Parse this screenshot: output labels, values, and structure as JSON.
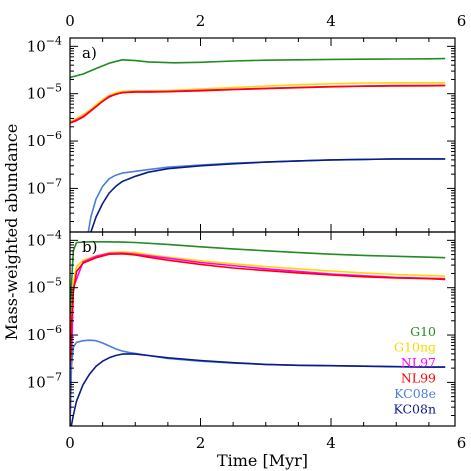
{
  "chart_data": [
    {
      "type": "line",
      "panel_label": "a)",
      "xlabel": "Time [Myr]",
      "ylabel": "Mass-weighted abundance",
      "xlim": [
        0,
        5.9
      ],
      "ylim": [
        1.2e-08,
        0.00015
      ],
      "yscale": "log",
      "x_ticks": [
        0,
        2,
        4,
        6
      ],
      "x_tick_labels": [
        "0",
        "2",
        "4",
        "6"
      ],
      "y_ticks": [
        1e-07,
        1e-06,
        1e-05,
        0.0001
      ],
      "y_tick_labels": [
        {
          "base": "10",
          "exp": "−7"
        },
        {
          "base": "10",
          "exp": "−6"
        },
        {
          "base": "10",
          "exp": "−5"
        },
        {
          "base": "10",
          "exp": "−4"
        }
      ],
      "series": [
        {
          "name": "G10",
          "color": "#228b22",
          "x": [
            0,
            0.2,
            0.4,
            0.6,
            0.8,
            1.0,
            1.2,
            1.6,
            2.0,
            2.5,
            3.0,
            3.5,
            4.0,
            4.5,
            5.0,
            5.5,
            5.75
          ],
          "y": [
            2.2e-05,
            2.6e-05,
            3.4e-05,
            4.4e-05,
            5.2e-05,
            5e-05,
            4.7e-05,
            4.5e-05,
            4.6e-05,
            4.9e-05,
            5.1e-05,
            5.2e-05,
            5.3e-05,
            5.35e-05,
            5.4e-05,
            5.45e-05,
            5.5e-05
          ]
        },
        {
          "name": "G10ng",
          "color": "#ffd700",
          "x": [
            0,
            0.1,
            0.2,
            0.3,
            0.4,
            0.5,
            0.6,
            0.7,
            0.8,
            1.0,
            1.2,
            1.5,
            2.0,
            2.5,
            3.0,
            3.5,
            4.0,
            4.5,
            5.0,
            5.5,
            5.75
          ],
          "y": [
            2.6e-06,
            3e-06,
            3.6e-06,
            4.5e-06,
            5.8e-06,
            7.5e-06,
            9.2e-06,
            1.05e-05,
            1.12e-05,
            1.15e-05,
            1.15e-05,
            1.17e-05,
            1.25e-05,
            1.35e-05,
            1.45e-05,
            1.55e-05,
            1.62e-05,
            1.68e-05,
            1.7e-05,
            1.7e-05,
            1.7e-05
          ]
        },
        {
          "name": "NL97",
          "color": "#ff00ff",
          "x": [
            0,
            0.2,
            0.4,
            0.6,
            0.8,
            1.0,
            1.5,
            2.0,
            3.0,
            4.0,
            5.0,
            5.75
          ],
          "y": [
            2.4e-06,
            3.3e-06,
            5.4e-06,
            8.8e-06,
            1.06e-05,
            1.1e-05,
            1.12e-05,
            1.18e-05,
            1.3e-05,
            1.42e-05,
            1.48e-05,
            1.5e-05
          ]
        },
        {
          "name": "NL99",
          "color": "#ff0000",
          "x": [
            0,
            0.1,
            0.2,
            0.3,
            0.4,
            0.5,
            0.6,
            0.7,
            0.8,
            1.0,
            1.2,
            1.5,
            2.0,
            2.5,
            3.0,
            3.5,
            4.0,
            4.5,
            5.0,
            5.5,
            5.75
          ],
          "y": [
            2.4e-06,
            2.7e-06,
            3.2e-06,
            4.1e-06,
            5.3e-06,
            6.9e-06,
            8.5e-06,
            9.8e-06,
            1.05e-05,
            1.08e-05,
            1.08e-05,
            1.1e-05,
            1.15e-05,
            1.22e-05,
            1.28e-05,
            1.34e-05,
            1.4e-05,
            1.44e-05,
            1.46e-05,
            1.47e-05,
            1.48e-05
          ]
        },
        {
          "name": "KC08e",
          "color": "#4a7ed8",
          "x": [
            0.28,
            0.32,
            0.4,
            0.5,
            0.6,
            0.7,
            0.8,
            1.0,
            1.2,
            1.5,
            2.0,
            2.5,
            3.0,
            3.5,
            4.0,
            4.5,
            5.0,
            5.5,
            5.75
          ],
          "y": [
            1.2e-08,
            2.5e-08,
            6e-08,
            1.1e-07,
            1.6e-07,
            1.9e-07,
            2.1e-07,
            2.3e-07,
            2.5e-07,
            2.8e-07,
            3.1e-07,
            3.4e-07,
            3.6e-07,
            3.8e-07,
            4e-07,
            4.1e-07,
            4.2e-07,
            4.2e-07,
            4.2e-07
          ]
        },
        {
          "name": "KC08n",
          "color": "#0a1a8a",
          "x": [
            0.32,
            0.4,
            0.5,
            0.6,
            0.7,
            0.8,
            1.0,
            1.2,
            1.5,
            2.0,
            2.5,
            3.0,
            3.5,
            4.0,
            4.5,
            5.0,
            5.5,
            5.75
          ],
          "y": [
            1.2e-08,
            2.5e-08,
            4.8e-08,
            8e-08,
            1.1e-07,
            1.4e-07,
            1.8e-07,
            2.2e-07,
            2.6e-07,
            3e-07,
            3.3e-07,
            3.6e-07,
            3.8e-07,
            4e-07,
            4.1e-07,
            4.2e-07,
            4.2e-07,
            4.2e-07
          ]
        }
      ]
    },
    {
      "type": "line",
      "panel_label": "b)",
      "xlabel": "Time [Myr]",
      "ylabel": "Mass-weighted abundance",
      "xlim": [
        0,
        5.9
      ],
      "ylim": [
        1.2e-08,
        0.00015
      ],
      "yscale": "log",
      "x_ticks": [
        0,
        2,
        4,
        6
      ],
      "x_tick_labels": [
        "0",
        "2",
        "4",
        "6"
      ],
      "y_ticks": [
        1e-07,
        1e-06,
        1e-05,
        0.0001
      ],
      "y_tick_labels": [
        {
          "base": "10",
          "exp": "−7"
        },
        {
          "base": "10",
          "exp": "−6"
        },
        {
          "base": "10",
          "exp": "−5"
        },
        {
          "base": "10",
          "exp": "−4"
        }
      ],
      "legend": {
        "position": "lower-right",
        "entries": [
          "G10",
          "G10ng",
          "NL97",
          "NL99",
          "KC08e",
          "KC08n"
        ]
      },
      "series": [
        {
          "name": "G10",
          "color": "#228b22",
          "x": [
            0,
            0.02,
            0.05,
            0.1,
            0.3,
            0.5,
            0.8,
            1.0,
            1.5,
            2.0,
            2.5,
            3.0,
            3.5,
            4.0,
            4.5,
            5.0,
            5.5,
            5.75
          ],
          "y": [
            1.2e-08,
            1e-05,
            6e-05,
            9e-05,
            9.3e-05,
            9.3e-05,
            9.2e-05,
            9e-05,
            8.2e-05,
            7.3e-05,
            6.6e-05,
            6e-05,
            5.5e-05,
            5.1e-05,
            4.8e-05,
            4.6e-05,
            4.4e-05,
            4.3e-05
          ]
        },
        {
          "name": "G10ng",
          "color": "#ffd700",
          "x": [
            0,
            0.02,
            0.05,
            0.1,
            0.2,
            0.4,
            0.6,
            0.8,
            1.0,
            1.2,
            1.5,
            2.0,
            2.5,
            3.0,
            3.5,
            4.0,
            4.5,
            5.0,
            5.5,
            5.75
          ],
          "y": [
            1.2e-08,
            2e-06,
            1.2e-05,
            2.8e-05,
            3.8e-05,
            4.7e-05,
            5.5e-05,
            5.7e-05,
            5.5e-05,
            5e-05,
            4.4e-05,
            3.7e-05,
            3.2e-05,
            2.8e-05,
            2.5e-05,
            2.25e-05,
            2.05e-05,
            1.9e-05,
            1.8e-05,
            1.75e-05
          ]
        },
        {
          "name": "NL97",
          "color": "#ff00ff",
          "x": [
            0,
            0.05,
            0.2,
            0.4,
            0.6,
            0.8,
            1.0,
            1.5,
            2.0,
            3.0,
            4.0,
            5.0,
            5.75
          ],
          "y": [
            1.2e-08,
            1e-05,
            3.5e-05,
            4.6e-05,
            5.3e-05,
            5.4e-05,
            5.1e-05,
            4.2e-05,
            3.4e-05,
            2.5e-05,
            1.95e-05,
            1.65e-05,
            1.55e-05
          ]
        },
        {
          "name": "NL99",
          "color": "#ff0000",
          "x": [
            0,
            0.02,
            0.05,
            0.1,
            0.2,
            0.4,
            0.6,
            0.8,
            1.0,
            1.2,
            1.5,
            2.0,
            2.5,
            3.0,
            3.5,
            4.0,
            4.5,
            5.0,
            5.5,
            5.75
          ],
          "y": [
            1.2e-08,
            1.5e-06,
            8e-06,
            2.2e-05,
            3.3e-05,
            4.3e-05,
            5.1e-05,
            5.2e-05,
            4.9e-05,
            4.4e-05,
            3.8e-05,
            3.1e-05,
            2.6e-05,
            2.3e-05,
            2.05e-05,
            1.85e-05,
            1.7e-05,
            1.6e-05,
            1.55e-05,
            1.5e-05
          ]
        },
        {
          "name": "KC08e",
          "color": "#4a7ed8",
          "x": [
            0,
            0.02,
            0.05,
            0.1,
            0.2,
            0.3,
            0.4,
            0.5,
            0.6,
            0.7,
            0.8,
            0.9,
            1.0,
            1.2,
            1.5,
            2.0,
            2.5,
            3.0,
            3.5,
            4.0,
            4.5,
            5.0,
            5.5,
            5.75
          ],
          "y": [
            1.2e-08,
            2e-07,
            5.5e-07,
            7e-07,
            7.6e-07,
            7.8e-07,
            7.6e-07,
            6.8e-07,
            5.9e-07,
            5.1e-07,
            4.6e-07,
            4.3e-07,
            4.1e-07,
            3.7e-07,
            3.2e-07,
            2.8e-07,
            2.55e-07,
            2.4e-07,
            2.3e-07,
            2.25e-07,
            2.2e-07,
            2.15e-07,
            2.1e-07,
            2.1e-07
          ]
        },
        {
          "name": "KC08n",
          "color": "#0a1a8a",
          "x": [
            0.02,
            0.05,
            0.1,
            0.2,
            0.3,
            0.4,
            0.5,
            0.6,
            0.7,
            0.8,
            0.9,
            1.0,
            1.2,
            1.5,
            2.0,
            2.5,
            3.0,
            3.5,
            4.0,
            4.5,
            5.0,
            5.5,
            5.75
          ],
          "y": [
            1.2e-08,
            2e-08,
            4e-08,
            9e-08,
            1.5e-07,
            2.2e-07,
            2.8e-07,
            3.3e-07,
            3.7e-07,
            3.95e-07,
            4e-07,
            3.95e-07,
            3.7e-07,
            3.3e-07,
            2.9e-07,
            2.6e-07,
            2.4e-07,
            2.3e-07,
            2.25e-07,
            2.2e-07,
            2.15e-07,
            2.1e-07,
            2.1e-07
          ]
        }
      ]
    }
  ]
}
